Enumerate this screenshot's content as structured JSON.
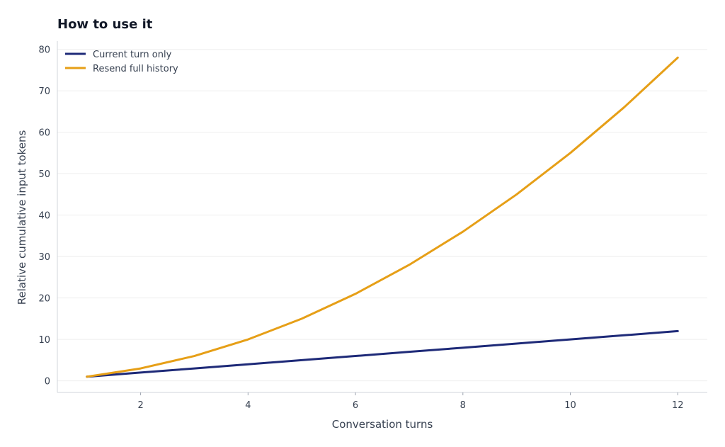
{
  "chart_data": {
    "type": "line",
    "title": "How to use it",
    "xlabel": "Conversation turns",
    "ylabel": "Relative cumulative input tokens",
    "x": [
      1,
      2,
      3,
      4,
      5,
      6,
      7,
      8,
      9,
      10,
      11,
      12
    ],
    "xticks": [
      2,
      4,
      6,
      8,
      10,
      12
    ],
    "yticks": [
      0,
      10,
      20,
      30,
      40,
      50,
      60,
      70,
      80
    ],
    "xlim": [
      0.45,
      12.55
    ],
    "ylim": [
      -2.8,
      82
    ],
    "grid": true,
    "legend_position": "top-left",
    "series": [
      {
        "name": "Current turn only",
        "color": "#1e2a78",
        "values": [
          1,
          2,
          3,
          4,
          5,
          6,
          7,
          8,
          9,
          10,
          11,
          12
        ]
      },
      {
        "name": "Resend full history",
        "color": "#e69f17",
        "values": [
          1,
          3,
          6,
          10,
          15,
          21,
          28,
          36,
          45,
          55,
          66,
          78
        ]
      }
    ]
  }
}
